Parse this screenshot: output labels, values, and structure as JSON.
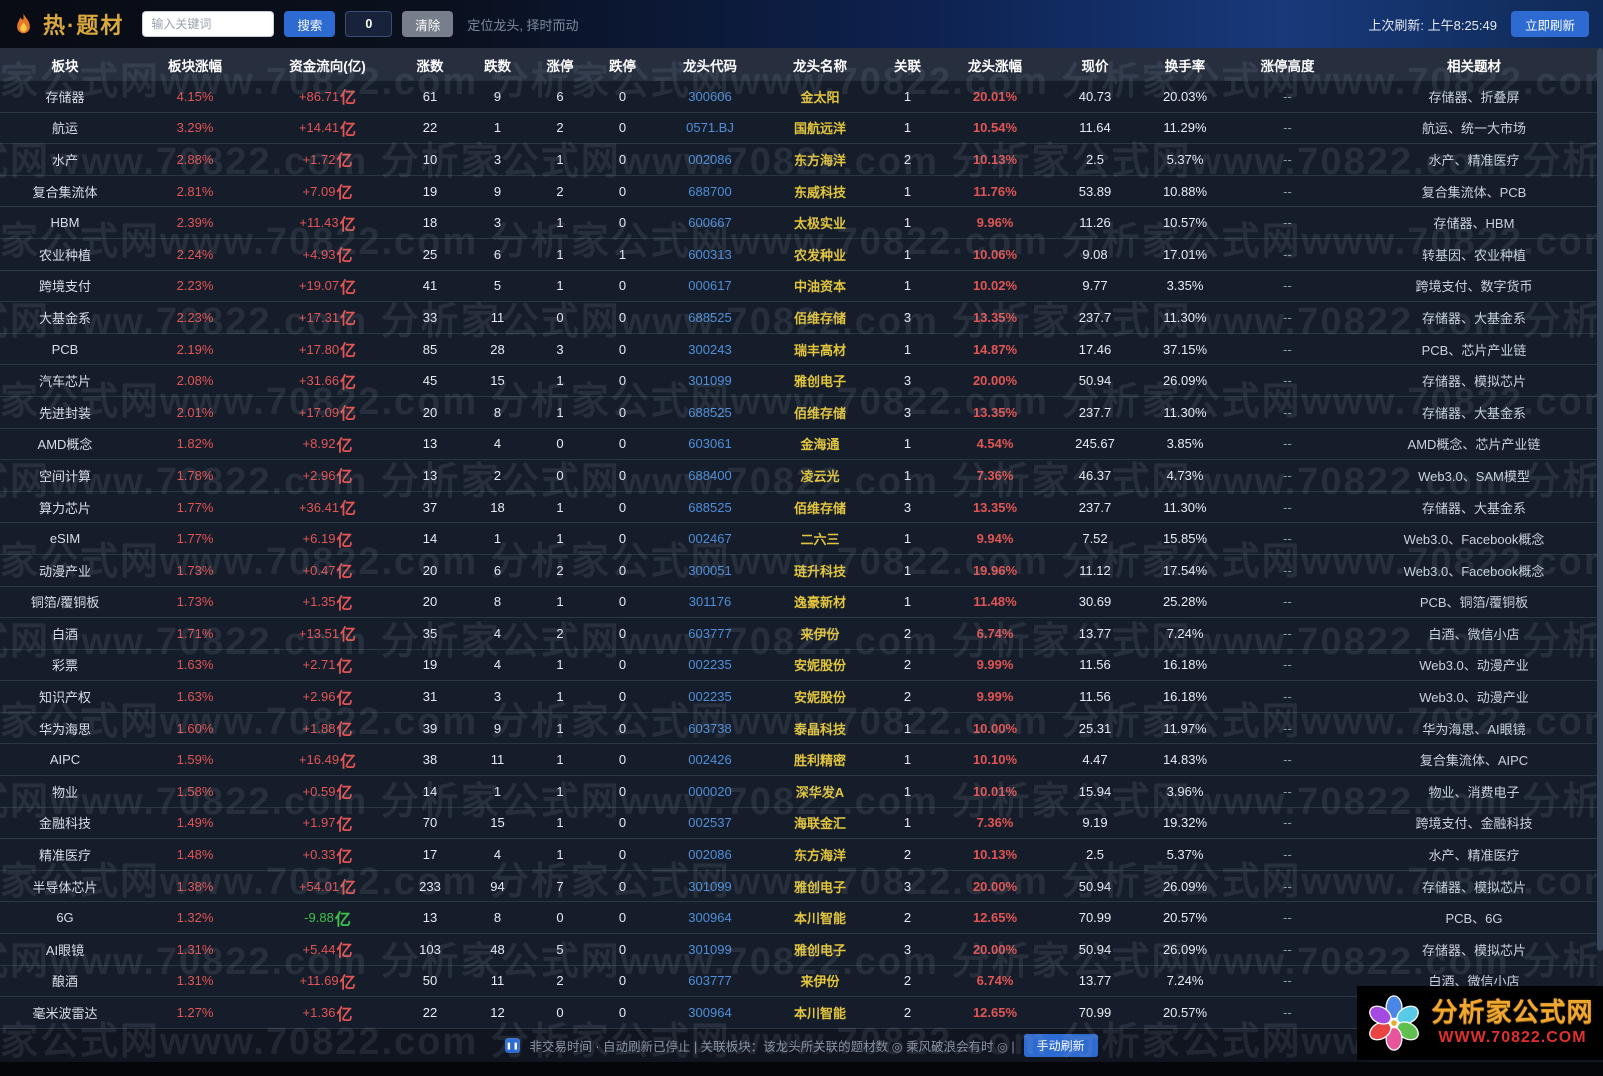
{
  "topbar": {
    "logo": "热·题材",
    "search_placeholder": "输入关键词",
    "search_button": "搜索",
    "counter": "0",
    "clear_button": "清除",
    "slogan": "定位龙头, 择时而动",
    "last_refresh": "上次刷新: 上午8:25:49",
    "refresh_button": "立即刷新"
  },
  "table": {
    "headers": [
      "板块",
      "板块涨幅",
      "资金流向(亿)",
      "涨数",
      "跌数",
      "涨停",
      "跌停",
      "龙头代码",
      "龙头名称",
      "关联",
      "龙头涨幅",
      "现价",
      "换手率",
      "涨停高度",
      "相关题材"
    ],
    "rows": [
      [
        "存储器",
        "4.15%",
        "+86.71亿",
        "61",
        "9",
        "6",
        "0",
        "300606",
        "金太阳",
        "1",
        "20.01%",
        "40.73",
        "20.03%",
        "--",
        "存储器、折叠屏"
      ],
      [
        "航运",
        "3.29%",
        "+14.41亿",
        "22",
        "1",
        "2",
        "0",
        "0571.BJ",
        "国航远洋",
        "1",
        "10.54%",
        "11.64",
        "11.29%",
        "--",
        "航运、统一大市场"
      ],
      [
        "水产",
        "2.88%",
        "+1.72亿",
        "10",
        "3",
        "1",
        "0",
        "002086",
        "东方海洋",
        "2",
        "10.13%",
        "2.5",
        "5.37%",
        "--",
        "水产、精准医疗"
      ],
      [
        "复合集流体",
        "2.81%",
        "+7.09亿",
        "19",
        "9",
        "2",
        "0",
        "688700",
        "东威科技",
        "1",
        "11.76%",
        "53.89",
        "10.88%",
        "--",
        "复合集流体、PCB"
      ],
      [
        "HBM",
        "2.39%",
        "+11.43亿",
        "18",
        "3",
        "1",
        "0",
        "600667",
        "太极实业",
        "1",
        "9.96%",
        "11.26",
        "10.57%",
        "--",
        "存储器、HBM"
      ],
      [
        "农业种植",
        "2.24%",
        "+4.93亿",
        "25",
        "6",
        "1",
        "1",
        "600313",
        "农发种业",
        "1",
        "10.06%",
        "9.08",
        "17.01%",
        "--",
        "转基因、农业种植"
      ],
      [
        "跨境支付",
        "2.23%",
        "+19.07亿",
        "41",
        "5",
        "1",
        "0",
        "000617",
        "中油资本",
        "1",
        "10.02%",
        "9.77",
        "3.35%",
        "--",
        "跨境支付、数字货币"
      ],
      [
        "大基金系",
        "2.23%",
        "+17.31亿",
        "33",
        "11",
        "0",
        "0",
        "688525",
        "佰维存储",
        "3",
        "13.35%",
        "237.7",
        "11.30%",
        "--",
        "存储器、大基金系"
      ],
      [
        "PCB",
        "2.19%",
        "+17.80亿",
        "85",
        "28",
        "3",
        "0",
        "300243",
        "瑞丰高材",
        "1",
        "14.87%",
        "17.46",
        "37.15%",
        "--",
        "PCB、芯片产业链"
      ],
      [
        "汽车芯片",
        "2.08%",
        "+31.66亿",
        "45",
        "15",
        "1",
        "0",
        "301099",
        "雅创电子",
        "3",
        "20.00%",
        "50.94",
        "26.09%",
        "--",
        "存储器、模拟芯片"
      ],
      [
        "先进封装",
        "2.01%",
        "+17.09亿",
        "20",
        "8",
        "1",
        "0",
        "688525",
        "佰维存储",
        "3",
        "13.35%",
        "237.7",
        "11.30%",
        "--",
        "存储器、大基金系"
      ],
      [
        "AMD概念",
        "1.82%",
        "+8.92亿",
        "13",
        "4",
        "0",
        "0",
        "603061",
        "金海通",
        "1",
        "4.54%",
        "245.67",
        "3.85%",
        "--",
        "AMD概念、芯片产业链"
      ],
      [
        "空间计算",
        "1.78%",
        "+2.96亿",
        "13",
        "2",
        "0",
        "0",
        "688400",
        "凌云光",
        "1",
        "7.36%",
        "46.37",
        "4.73%",
        "--",
        "Web3.0、SAM模型"
      ],
      [
        "算力芯片",
        "1.77%",
        "+36.41亿",
        "37",
        "18",
        "1",
        "0",
        "688525",
        "佰维存储",
        "3",
        "13.35%",
        "237.7",
        "11.30%",
        "--",
        "存储器、大基金系"
      ],
      [
        "eSIM",
        "1.77%",
        "+6.19亿",
        "14",
        "1",
        "1",
        "0",
        "002467",
        "二六三",
        "1",
        "9.94%",
        "7.52",
        "15.85%",
        "--",
        "Web3.0、Facebook概念"
      ],
      [
        "动漫产业",
        "1.73%",
        "+0.47亿",
        "20",
        "6",
        "2",
        "0",
        "300051",
        "琏升科技",
        "1",
        "19.96%",
        "11.12",
        "17.54%",
        "--",
        "Web3.0、Facebook概念"
      ],
      [
        "铜箔/覆铜板",
        "1.73%",
        "+1.35亿",
        "20",
        "8",
        "1",
        "0",
        "301176",
        "逸豪新材",
        "1",
        "11.48%",
        "30.69",
        "25.28%",
        "--",
        "PCB、铜箔/覆铜板"
      ],
      [
        "白酒",
        "1.71%",
        "+13.51亿",
        "35",
        "4",
        "2",
        "0",
        "603777",
        "来伊份",
        "2",
        "6.74%",
        "13.77",
        "7.24%",
        "--",
        "白酒、微信小店"
      ],
      [
        "彩票",
        "1.63%",
        "+2.71亿",
        "19",
        "4",
        "1",
        "0",
        "002235",
        "安妮股份",
        "2",
        "9.99%",
        "11.56",
        "16.18%",
        "--",
        "Web3.0、动漫产业"
      ],
      [
        "知识产权",
        "1.63%",
        "+2.96亿",
        "31",
        "3",
        "1",
        "0",
        "002235",
        "安妮股份",
        "2",
        "9.99%",
        "11.56",
        "16.18%",
        "--",
        "Web3.0、动漫产业"
      ],
      [
        "华为海思",
        "1.60%",
        "+1.88亿",
        "39",
        "9",
        "1",
        "0",
        "603738",
        "泰晶科技",
        "1",
        "10.00%",
        "25.31",
        "11.97%",
        "--",
        "华为海思、AI眼镜"
      ],
      [
        "AIPC",
        "1.59%",
        "+16.49亿",
        "38",
        "11",
        "1",
        "0",
        "002426",
        "胜利精密",
        "1",
        "10.10%",
        "4.47",
        "14.83%",
        "--",
        "复合集流体、AIPC"
      ],
      [
        "物业",
        "1.58%",
        "+0.59亿",
        "14",
        "1",
        "1",
        "0",
        "000020",
        "深华发A",
        "1",
        "10.01%",
        "15.94",
        "3.96%",
        "--",
        "物业、消费电子"
      ],
      [
        "金融科技",
        "1.49%",
        "+1.97亿",
        "70",
        "15",
        "1",
        "0",
        "002537",
        "海联金汇",
        "1",
        "7.36%",
        "9.19",
        "19.32%",
        "--",
        "跨境支付、金融科技"
      ],
      [
        "精准医疗",
        "1.48%",
        "+0.33亿",
        "17",
        "4",
        "1",
        "0",
        "002086",
        "东方海洋",
        "2",
        "10.13%",
        "2.5",
        "5.37%",
        "--",
        "水产、精准医疗"
      ],
      [
        "半导体芯片",
        "1.38%",
        "+54.01亿",
        "233",
        "94",
        "7",
        "0",
        "301099",
        "雅创电子",
        "3",
        "20.00%",
        "50.94",
        "26.09%",
        "--",
        "存储器、模拟芯片"
      ],
      [
        "6G",
        "1.32%",
        "-9.88亿",
        "13",
        "8",
        "0",
        "0",
        "300964",
        "本川智能",
        "2",
        "12.65%",
        "70.99",
        "20.57%",
        "--",
        "PCB、6G"
      ],
      [
        "AI眼镜",
        "1.31%",
        "+5.44亿",
        "103",
        "48",
        "5",
        "0",
        "301099",
        "雅创电子",
        "3",
        "20.00%",
        "50.94",
        "26.09%",
        "--",
        "存储器、模拟芯片"
      ],
      [
        "酿酒",
        "1.31%",
        "+11.69亿",
        "50",
        "11",
        "2",
        "0",
        "603777",
        "来伊份",
        "2",
        "6.74%",
        "13.77",
        "7.24%",
        "--",
        "白酒、微信小店"
      ],
      [
        "毫米波雷达",
        "1.27%",
        "+1.36亿",
        "22",
        "12",
        "0",
        "0",
        "300964",
        "本川智能",
        "2",
        "12.65%",
        "70.99",
        "20.57%",
        "--",
        "PCB、6G"
      ]
    ]
  },
  "watermark": "分析家公式网www.70822.com",
  "statusbar": {
    "pause_icon": "❚❚",
    "text": "非交易时间 · 自动刷新已停止 | 关联板块：该龙头所关联的题材数 ◎ 乘风破浪会有时 ◎ |",
    "manual_refresh_button": "手动刷新"
  },
  "brand": {
    "name": "分析家公式网",
    "url": "WWW.70822.COM"
  },
  "colors": {
    "accent_blue": "#2d6bd2",
    "up_red": "#e25555",
    "down_green": "#3fc24d",
    "code_blue": "#4f8fd9",
    "leader_gold": "#e2c53e",
    "title_gold": "#d9a83f",
    "brand_orange": "#f0a830",
    "brand_red": "#e03030",
    "header_bg": "#272f3e",
    "row_bg": "#161d2a"
  }
}
